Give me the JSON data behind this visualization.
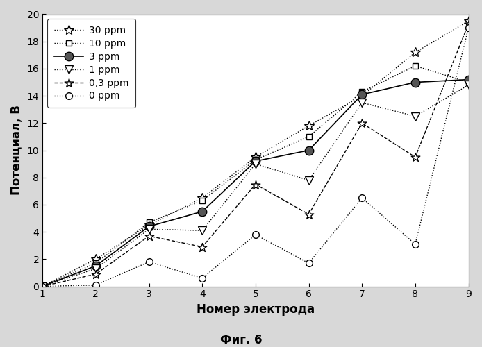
{
  "x": [
    1,
    2,
    3,
    4,
    5,
    6,
    7,
    8,
    9
  ],
  "series": {
    "30 ppm": {
      "y": [
        0.0,
        2.0,
        4.5,
        6.5,
        9.5,
        11.8,
        14.0,
        17.2,
        19.5
      ],
      "linestyle": ":",
      "marker": "*",
      "color": "black",
      "markersize": 10,
      "markerfacecolor": "white",
      "markeredgecolor": "black",
      "linewidth": 1.0
    },
    "10 ppm": {
      "y": [
        0.0,
        1.7,
        4.7,
        6.3,
        9.3,
        11.0,
        14.3,
        16.2,
        15.0
      ],
      "linestyle": ":",
      "marker": "s",
      "color": "black",
      "markersize": 6,
      "markerfacecolor": "white",
      "markeredgecolor": "black",
      "linewidth": 1.0
    },
    "3 ppm": {
      "y": [
        0.0,
        1.5,
        4.4,
        5.5,
        9.2,
        10.0,
        14.1,
        15.0,
        15.2
      ],
      "linestyle": "-",
      "marker": "o",
      "color": "black",
      "markersize": 9,
      "markerfacecolor": "#555555",
      "markeredgecolor": "black",
      "linewidth": 1.2
    },
    "1 ppm": {
      "y": [
        0.0,
        1.3,
        4.2,
        4.1,
        9.0,
        7.8,
        13.5,
        12.5,
        14.8
      ],
      "linestyle": ":",
      "marker": "v",
      "color": "black",
      "markersize": 8,
      "markerfacecolor": "white",
      "markeredgecolor": "black",
      "linewidth": 1.0
    },
    "0,3 ppm": {
      "y": [
        0.0,
        0.9,
        3.7,
        2.9,
        7.5,
        5.3,
        12.0,
        9.5,
        19.3
      ],
      "linestyle": "--",
      "marker": "$\\star$",
      "color": "black",
      "markersize": 9,
      "markerfacecolor": "white",
      "markeredgecolor": "black",
      "linewidth": 1.0
    },
    "0 ppm": {
      "y": [
        0.0,
        0.1,
        1.8,
        0.6,
        3.8,
        1.7,
        6.5,
        3.1,
        19.0
      ],
      "linestyle": ":",
      "marker": "o",
      "color": "black",
      "markersize": 7,
      "markerfacecolor": "white",
      "markeredgecolor": "black",
      "linewidth": 1.0
    }
  },
  "xlabel": "Номер электрода",
  "ylabel": "Потенциал, В",
  "caption": "Фиг. 6",
  "xlim": [
    1,
    9
  ],
  "ylim": [
    0,
    20
  ],
  "xticks": [
    1,
    2,
    3,
    4,
    5,
    6,
    7,
    8,
    9
  ],
  "yticks": [
    0,
    2,
    4,
    6,
    8,
    10,
    12,
    14,
    16,
    18,
    20
  ],
  "background_color": "#d8d8d8",
  "plot_bg_color": "#ffffff",
  "legend_order": [
    "30 ppm",
    "10 ppm",
    "3 ppm",
    "1 ppm",
    "0,3 ppm",
    "0 ppm"
  ]
}
